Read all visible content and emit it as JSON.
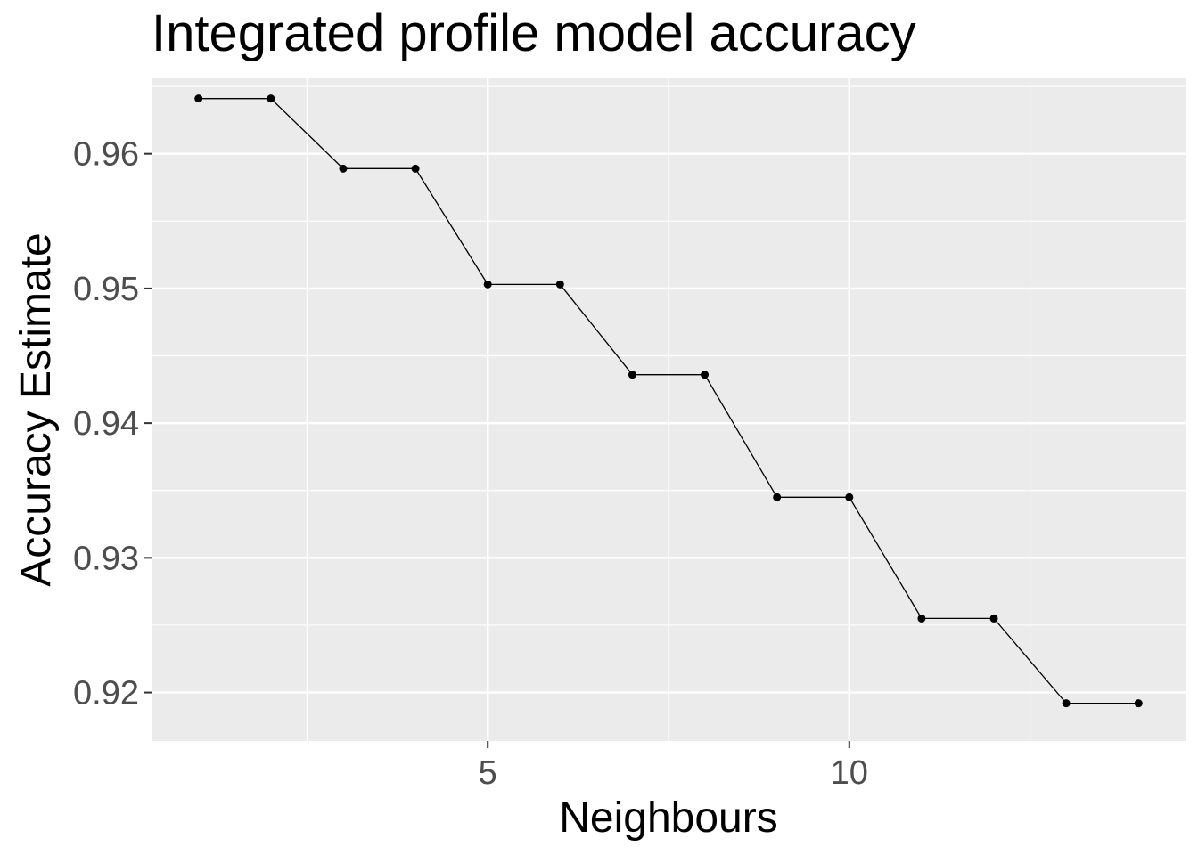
{
  "chart_data": {
    "type": "line",
    "title": "Integrated profile model accuracy",
    "xlabel": "Neighbours",
    "ylabel": "Accuracy Estimate",
    "x": [
      1,
      2,
      3,
      4,
      5,
      6,
      7,
      8,
      9,
      10,
      11,
      12,
      13,
      14
    ],
    "series": [
      {
        "values": [
          0.9641,
          0.9641,
          0.9589,
          0.9589,
          0.9503,
          0.9503,
          0.9436,
          0.9436,
          0.9345,
          0.9345,
          0.9255,
          0.9255,
          0.9192,
          0.9192
        ]
      }
    ],
    "xlim": [
      0.35,
      14.65
    ],
    "ylim": [
      0.9164,
      0.9656
    ],
    "x_ticks": [
      5,
      10
    ],
    "x_tick_labels": [
      "5",
      "10"
    ],
    "y_ticks": [
      0.92,
      0.93,
      0.94,
      0.95,
      0.96
    ],
    "y_tick_labels": [
      "0.92",
      "0.93",
      "0.94",
      "0.95",
      "0.96"
    ],
    "grid": true,
    "panel_background": "#ebebeb",
    "line_color": "#000000",
    "point_color": "#000000"
  }
}
